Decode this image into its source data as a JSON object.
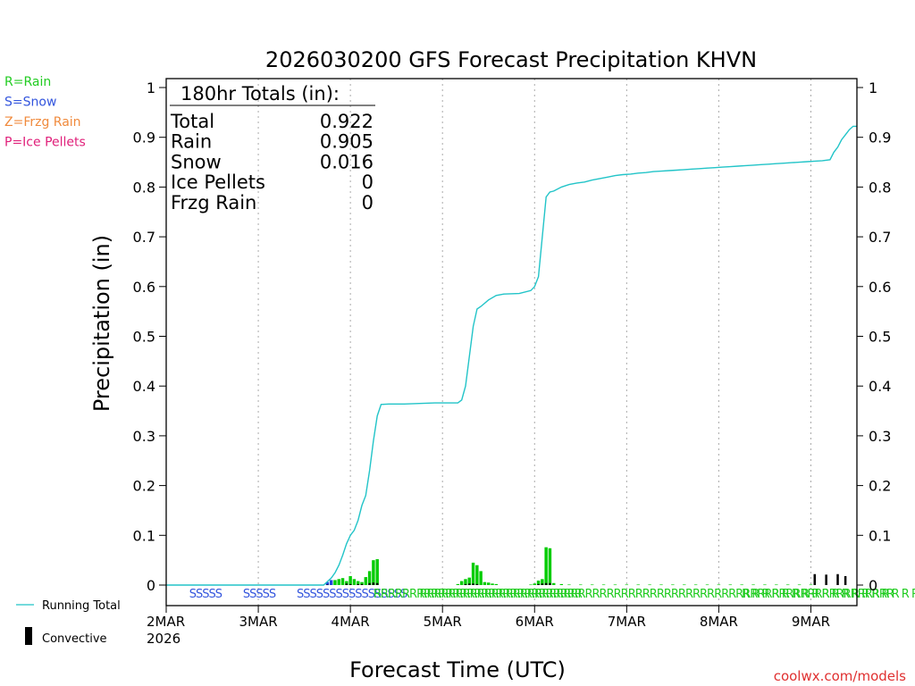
{
  "chart_data": {
    "type": "bar",
    "title": "2026030200 GFS Forecast Precipitation KHVN",
    "xlabel": "Forecast Time (UTC)",
    "ylabel": "Precipitation (in)",
    "ylim": [
      0,
      1
    ],
    "y_ticks": [
      "0",
      "0.1",
      "0.2",
      "0.3",
      "0.4",
      "0.5",
      "0.6",
      "0.7",
      "0.8",
      "0.9",
      "1"
    ],
    "y_tick_values": [
      0,
      0.1,
      0.2,
      0.3,
      0.4,
      0.5,
      0.6,
      0.7,
      0.8,
      0.9,
      1
    ],
    "x_range_hours": [
      0,
      180
    ],
    "x_ticks": [
      {
        "label": "2MAR",
        "hour": 0,
        "sub": "2026"
      },
      {
        "label": "3MAR",
        "hour": 24
      },
      {
        "label": "4MAR",
        "hour": 48
      },
      {
        "label": "5MAR",
        "hour": 72
      },
      {
        "label": "6MAR",
        "hour": 96
      },
      {
        "label": "7MAR",
        "hour": 120
      },
      {
        "label": "8MAR",
        "hour": 144
      },
      {
        "label": "9MAR",
        "hour": 168
      }
    ],
    "legend_types": [
      {
        "text": "R=Rain",
        "color": "#22cc22"
      },
      {
        "text": "S=Snow",
        "color": "#3355dd"
      },
      {
        "text": "Z=Frzg Rain",
        "color": "#f08a3c"
      },
      {
        "text": "P=Ice Pellets",
        "color": "#e0207a"
      }
    ],
    "legend_bottom": {
      "running_total": "Running Total",
      "convective": "Convective"
    },
    "totals": {
      "header": "180hr Totals (in):",
      "rows": [
        {
          "label": "Total",
          "value": "0.922"
        },
        {
          "label": "Rain",
          "value": "0.905"
        },
        {
          "label": "Snow",
          "value": "0.016"
        },
        {
          "label": "Ice Pellets",
          "value": "0"
        },
        {
          "label": "Frzg Rain",
          "value": "0"
        }
      ]
    },
    "series": [
      {
        "name": "Running Total",
        "type": "line",
        "color": "#22c4c8",
        "x": [
          0,
          41,
          42,
          43,
          44,
          45,
          46,
          47,
          48,
          49,
          50,
          51,
          52,
          53,
          54,
          55,
          56,
          58,
          62,
          66,
          70,
          74,
          76,
          77,
          78,
          79,
          80,
          81,
          82,
          84,
          86,
          88,
          92,
          95,
          96,
          97,
          98,
          99,
          100,
          101,
          103,
          105,
          107,
          109,
          111,
          113,
          115,
          117,
          119,
          121,
          123,
          125,
          127,
          129,
          131,
          133,
          135,
          137,
          139,
          141,
          143,
          145,
          147,
          149,
          151,
          153,
          155,
          157,
          159,
          161,
          163,
          165,
          167,
          169,
          171,
          173,
          174,
          175,
          176,
          177,
          178,
          179,
          180
        ],
        "y": [
          0,
          0,
          0.007,
          0.014,
          0.025,
          0.04,
          0.06,
          0.083,
          0.1,
          0.11,
          0.13,
          0.16,
          0.18,
          0.23,
          0.29,
          0.34,
          0.363,
          0.364,
          0.364,
          0.365,
          0.366,
          0.366,
          0.366,
          0.372,
          0.4,
          0.46,
          0.52,
          0.555,
          0.56,
          0.573,
          0.582,
          0.585,
          0.586,
          0.592,
          0.6,
          0.62,
          0.7,
          0.78,
          0.79,
          0.792,
          0.8,
          0.805,
          0.808,
          0.81,
          0.814,
          0.817,
          0.82,
          0.823,
          0.825,
          0.826,
          0.828,
          0.829,
          0.831,
          0.832,
          0.833,
          0.834,
          0.835,
          0.836,
          0.837,
          0.838,
          0.839,
          0.84,
          0.841,
          0.842,
          0.843,
          0.844,
          0.845,
          0.846,
          0.847,
          0.848,
          0.849,
          0.85,
          0.851,
          0.852,
          0.853,
          0.855,
          0.87,
          0.88,
          0.895,
          0.905,
          0.915,
          0.922,
          0.922
        ]
      },
      {
        "name": "Rain",
        "type": "bar",
        "color": "#00cc00",
        "x": [
          43,
          44,
          45,
          46,
          47,
          48,
          49,
          50,
          51,
          52,
          53,
          54,
          55,
          76,
          77,
          78,
          79,
          80,
          81,
          82,
          83,
          84,
          85,
          86,
          95,
          96,
          97,
          98,
          99,
          100,
          101,
          103,
          105,
          108,
          111,
          114,
          117,
          120,
          123,
          126,
          129,
          132,
          135,
          138,
          141,
          144,
          147,
          150,
          153,
          156,
          159,
          162,
          165,
          168
        ],
        "y": [
          0.005,
          0.01,
          0.012,
          0.014,
          0.008,
          0.018,
          0.012,
          0.008,
          0.006,
          0.016,
          0.028,
          0.05,
          0.052,
          0.002,
          0.008,
          0.012,
          0.015,
          0.045,
          0.04,
          0.028,
          0.006,
          0.005,
          0.003,
          0.002,
          0.001,
          0.003,
          0.009,
          0.012,
          0.076,
          0.074,
          0.004,
          0.002,
          0.001,
          0.001,
          0.001,
          0.001,
          0.001,
          0.001,
          0.001,
          0.001,
          0.001,
          0.001,
          0.001,
          0.001,
          0.001,
          0.001,
          0.001,
          0.001,
          0.001,
          0.001,
          0.001,
          0.001,
          0.001,
          0.001
        ]
      },
      {
        "name": "Snow",
        "type": "bar",
        "color": "#2244dd",
        "x": [
          42,
          43
        ],
        "y": [
          0.006,
          0.01
        ]
      },
      {
        "name": "Convective",
        "type": "bar",
        "color": "#000000",
        "x": [
          42,
          47,
          48,
          50,
          51,
          53,
          54,
          55,
          78,
          79,
          80,
          81,
          97,
          98,
          99,
          100,
          169,
          172,
          175,
          177
        ],
        "y": [
          0.001,
          0.003,
          0.002,
          0.002,
          0.002,
          0.004,
          0.005,
          0.004,
          0.002,
          0.003,
          0.003,
          0.002,
          0.002,
          0.003,
          0.004,
          0.004,
          0.022,
          0.021,
          0.022,
          0.018
        ]
      }
    ],
    "precip_type_marks": [
      {
        "hour": 6,
        "text": "SSSSS",
        "color": "#3355dd"
      },
      {
        "hour": 20,
        "text": "SSSSS",
        "color": "#3355dd"
      },
      {
        "hour": 34,
        "text": "SSSSSSSSSSSSSSSSS",
        "color": "#3355dd"
      },
      {
        "hour": 54,
        "text": "RRRRRRRRRRRRRRRRRRRRRRRRRRRRR",
        "color": "#22cc22"
      },
      {
        "hour": 66,
        "text": "RRRRRRRRRRRRRRRRR",
        "color": "#22cc22"
      },
      {
        "hour": 96,
        "text": "RRRRRRRRRRRRRRRRRRRRRRRRRRRRRRRRRRRRRRRRRRRRRRRRRR",
        "color": "#22cc22"
      },
      {
        "hour": 150,
        "text": "R R R R R R R R R R R R R R R R R R R R R",
        "color": "#22cc22"
      }
    ]
  },
  "credit": "coolwx.com/models"
}
